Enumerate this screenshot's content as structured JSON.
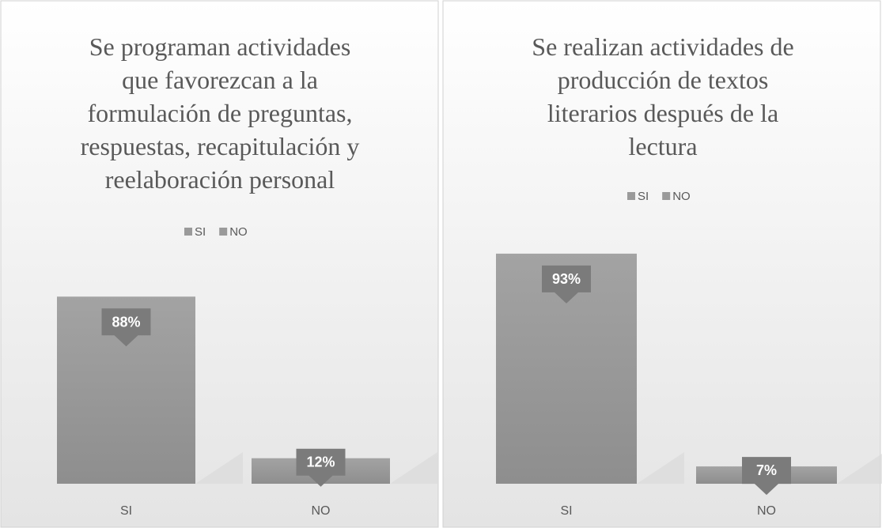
{
  "chart_data": [
    {
      "type": "bar",
      "title": [
        "Se programan actividades",
        "que favorezcan a la",
        "formulación de preguntas,",
        "respuestas, recapitulación y",
        "reelaboración personal"
      ],
      "categories": [
        "SI",
        "NO"
      ],
      "values": [
        88,
        12
      ],
      "value_labels": [
        "88%",
        "12%"
      ],
      "color": "#9a9a9a",
      "ylim": [
        0,
        100
      ],
      "legend": true
    },
    {
      "type": "bar",
      "title": [
        "Se realizan actividades de",
        "producción de textos",
        "literarios después de la",
        "lectura"
      ],
      "categories": [
        "SI",
        "NO"
      ],
      "values": [
        93,
        7
      ],
      "value_labels": [
        "93%",
        "7%"
      ],
      "color": "#9a9a9a",
      "ylim": [
        0,
        100
      ],
      "legend": true
    }
  ]
}
